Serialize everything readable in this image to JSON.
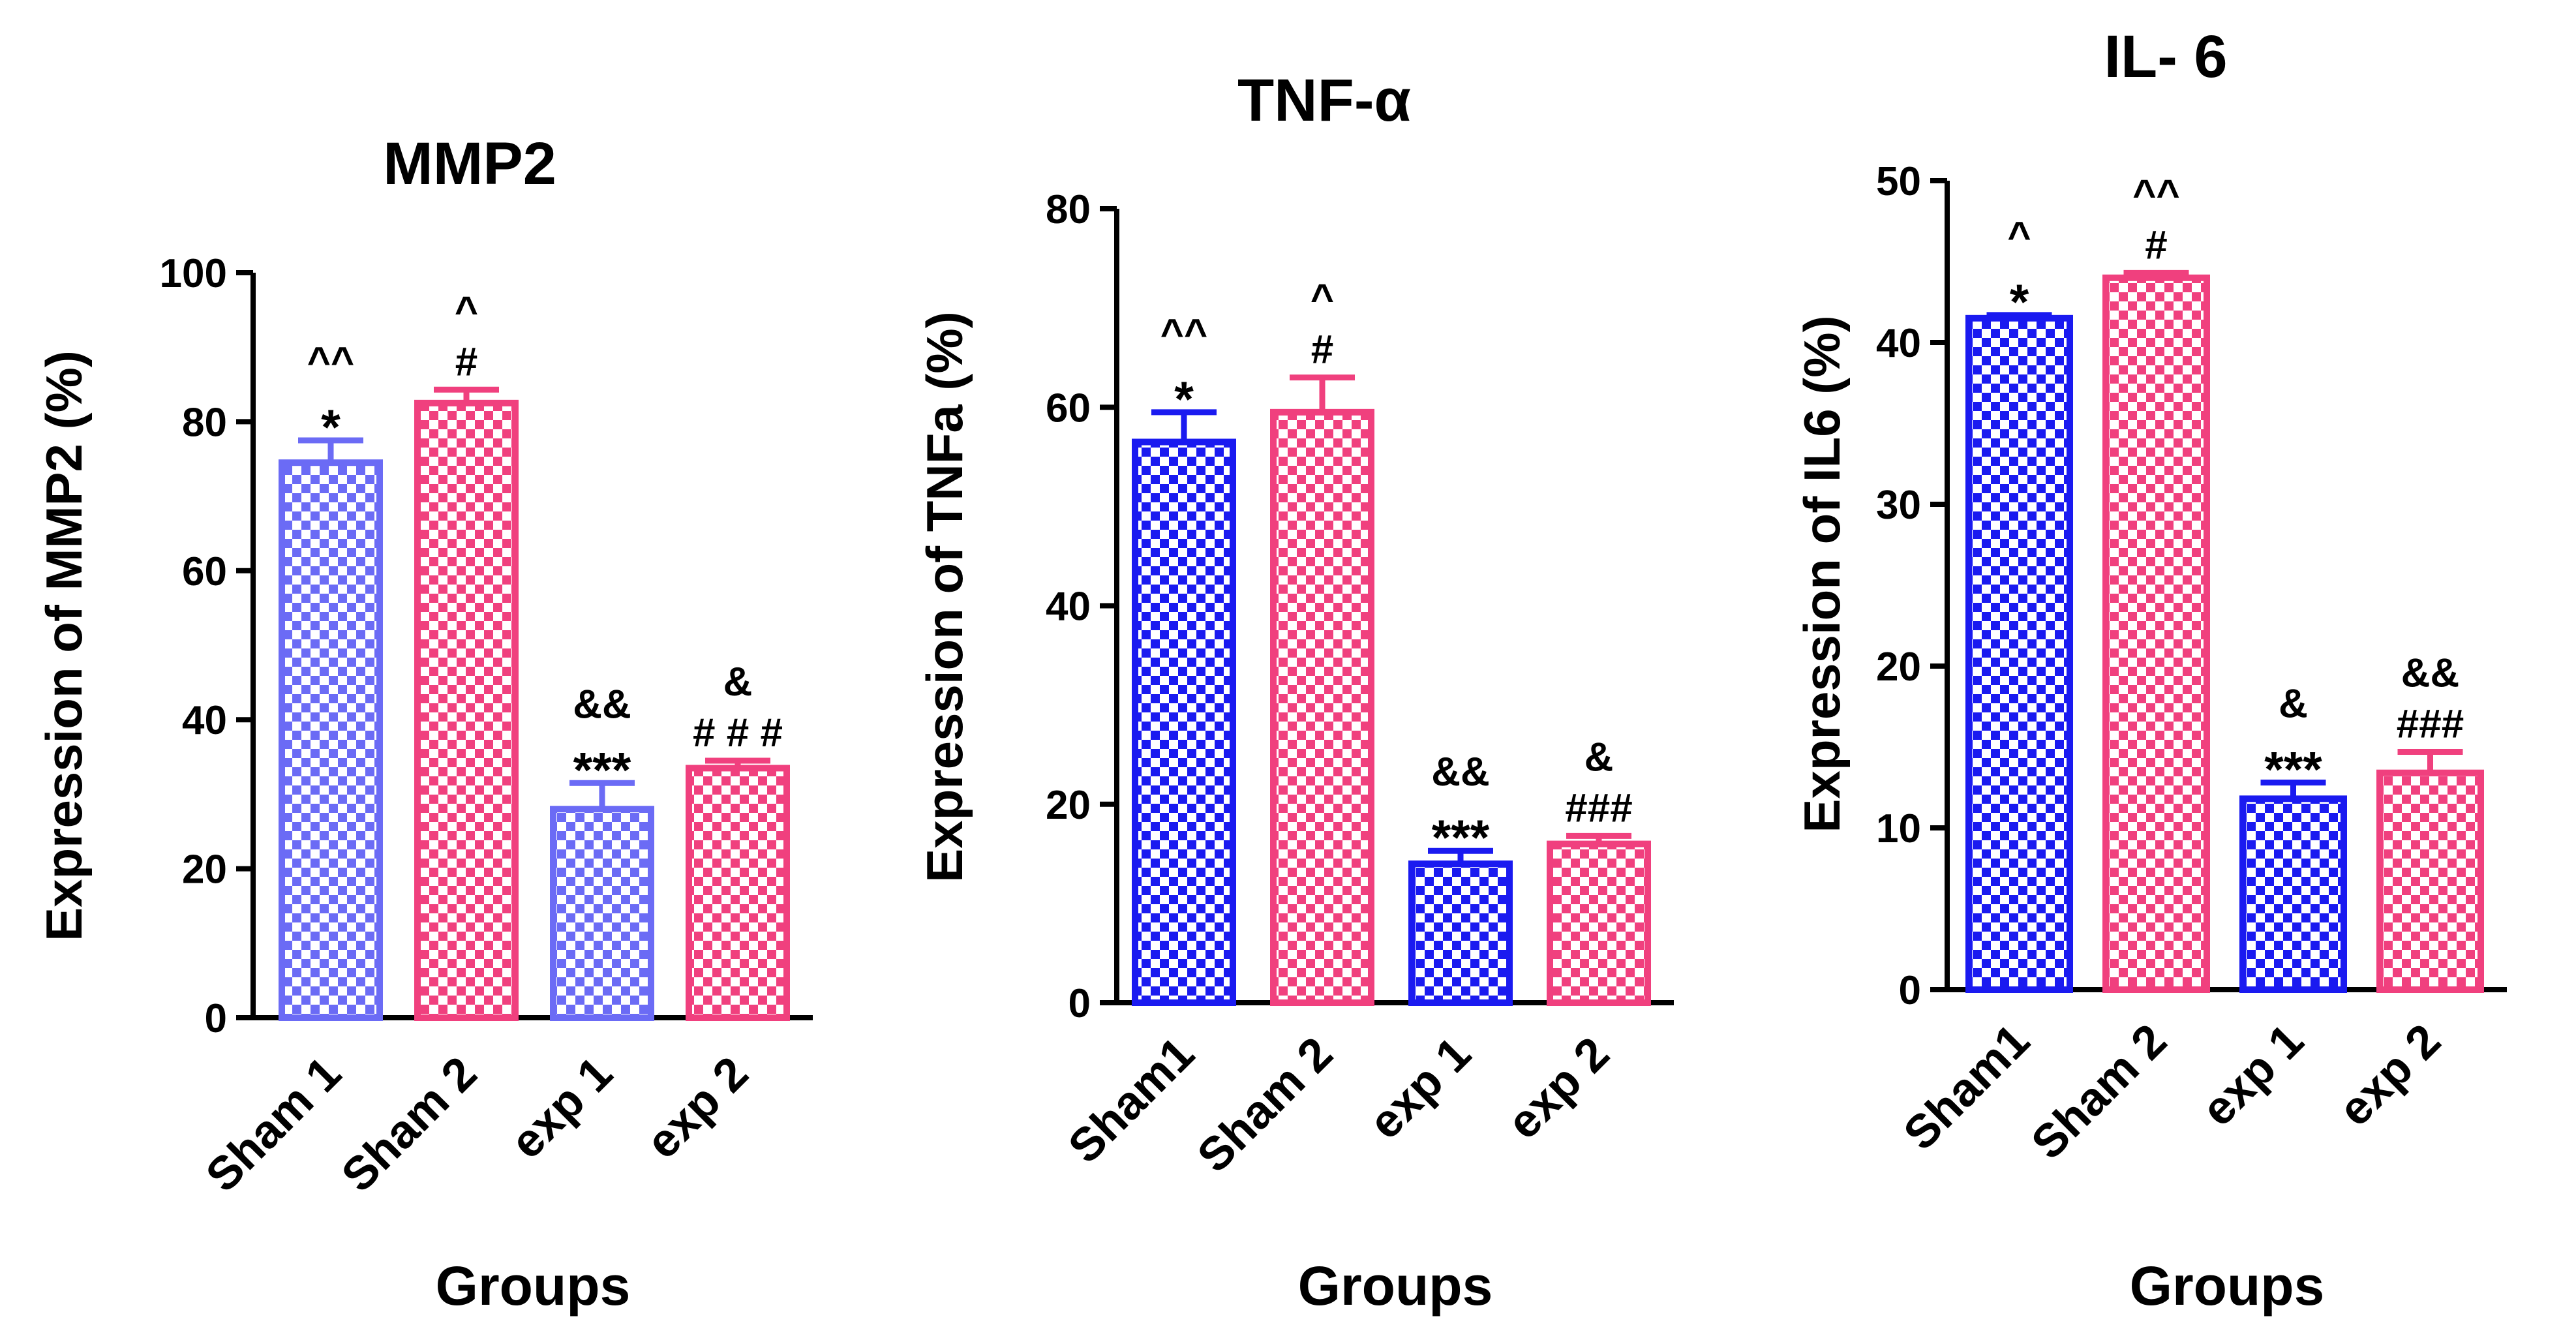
{
  "chart_data": [
    {
      "type": "bar",
      "title": "MMP2",
      "ylabel": "Expression of MMP2 (%)",
      "xlabel": "Groups",
      "ylim": [
        0,
        100
      ],
      "yticks": [
        0,
        20,
        40,
        60,
        80,
        100
      ],
      "categories": [
        "Sham 1",
        "Sham 2",
        "exp 1",
        "exp 2"
      ],
      "values": [
        74.5,
        82.5,
        28,
        33.5
      ],
      "errors": [
        3,
        1.8,
        3.5,
        1
      ],
      "colors": [
        "#6B6BF5",
        "#F0407E",
        "#6B6BF5",
        "#F0407E"
      ],
      "annotations": [
        [
          "^^",
          "*"
        ],
        [
          "^",
          "#"
        ],
        [
          "&&",
          "***"
        ],
        [
          "&",
          "# # #"
        ]
      ]
    },
    {
      "type": "bar",
      "title": "TNF-α",
      "ylabel": "Expression of TNFa (%)",
      "xlabel": "Groups",
      "ylim": [
        0,
        80
      ],
      "yticks": [
        0,
        20,
        40,
        60,
        80
      ],
      "categories": [
        "Sham1",
        "Sham 2",
        "exp 1",
        "exp 2"
      ],
      "values": [
        56.5,
        59.5,
        14,
        16
      ],
      "errors": [
        3,
        3.5,
        1.3,
        0.8
      ],
      "colors": [
        "#1A1AF0",
        "#F0407E",
        "#1A1AF0",
        "#F0407E"
      ],
      "annotations": [
        [
          "^^",
          "*"
        ],
        [
          "^",
          "#"
        ],
        [
          "&&",
          "***"
        ],
        [
          "&",
          "###"
        ]
      ]
    },
    {
      "type": "bar",
      "title": "IL- 6",
      "ylabel": "Expression of IL6 (%)",
      "xlabel": "Groups",
      "ylim": [
        0,
        50
      ],
      "yticks": [
        0,
        10,
        20,
        30,
        40,
        50
      ],
      "categories": [
        "Sham1",
        "Sham 2",
        "exp 1",
        "exp 2"
      ],
      "values": [
        41.5,
        44,
        11.8,
        13.4
      ],
      "errors": [
        0.2,
        0.3,
        1,
        1.3
      ],
      "colors": [
        "#1A1AF0",
        "#F0407E",
        "#1A1AF0",
        "#F0407E"
      ],
      "annotations": [
        [
          "^",
          "*"
        ],
        [
          "^^",
          "#"
        ],
        [
          "&",
          "***"
        ],
        [
          "&&",
          "###"
        ]
      ]
    }
  ]
}
